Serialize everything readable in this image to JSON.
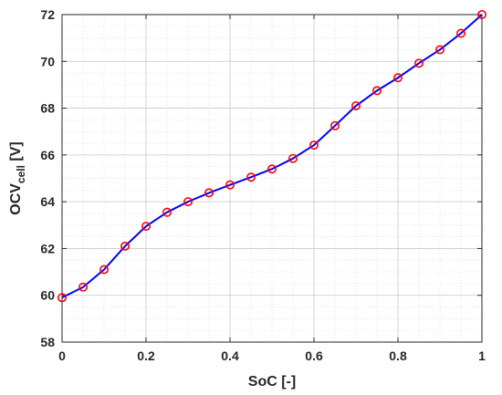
{
  "chart_data": {
    "type": "line",
    "title": "",
    "xlabel": "SoC [-]",
    "ylabel_main": "OCV",
    "ylabel_sub": "cell",
    "ylabel_unit": " [V]",
    "xlim": [
      0,
      1
    ],
    "ylim": [
      58,
      72
    ],
    "xticks": [
      "0",
      "0.2",
      "0.4",
      "0.6",
      "0.8",
      "1"
    ],
    "yticks": [
      "58",
      "60",
      "62",
      "64",
      "66",
      "68",
      "70",
      "72"
    ],
    "grid": true,
    "minor_grid": true,
    "line_color": "#0000ff",
    "marker_color": "#ff0000",
    "marker": "circle",
    "series": [
      {
        "x": [
          0,
          0.05,
          0.1,
          0.15,
          0.2,
          0.25,
          0.3,
          0.35,
          0.4,
          0.45,
          0.5,
          0.55,
          0.6,
          0.65,
          0.7,
          0.75,
          0.8,
          0.85,
          0.9,
          0.95,
          1.0
        ],
        "y": [
          59.9,
          60.35,
          61.1,
          62.1,
          62.95,
          63.55,
          64.0,
          64.38,
          64.72,
          65.05,
          65.4,
          65.85,
          66.42,
          67.25,
          68.1,
          68.75,
          69.3,
          69.92,
          70.5,
          71.2,
          72.0
        ]
      }
    ]
  }
}
